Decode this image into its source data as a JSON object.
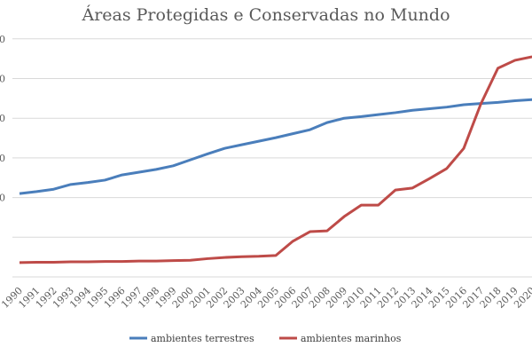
{
  "chart_data": {
    "type": "line",
    "title": "Áreas Protegidas e Conservadas no Mundo",
    "xlabel": "",
    "ylabel": "",
    "x": [
      1990,
      1991,
      1992,
      1993,
      1994,
      1995,
      1996,
      1997,
      1998,
      1999,
      2000,
      2001,
      2002,
      2003,
      2004,
      2005,
      2006,
      2007,
      2008,
      2009,
      2010,
      2011,
      2012,
      2013,
      2014,
      2015,
      2016,
      2017,
      2018,
      2019,
      2020
    ],
    "x_tick_labels": [
      "1990",
      "1991",
      "1992",
      "1993",
      "1994",
      "1995",
      "1996",
      "1997",
      "1998",
      "1999",
      "2000",
      "2001",
      "2002",
      "2003",
      "2004",
      "2005",
      "2006",
      "2007",
      "2008",
      "2009",
      "2010",
      "2011",
      "2012",
      "2013",
      "2014",
      "2015",
      "2016",
      "2017",
      "2018",
      "2019",
      "2020"
    ],
    "y_tick_labels_visible": [
      "0",
      "0",
      "0",
      "0",
      "0"
    ],
    "ylim": [
      0,
      6
    ],
    "grid": true,
    "legend": "bottom",
    "series": [
      {
        "name": "ambientes terrestres",
        "color": "#4a7ebb",
        "values": [
          2.1,
          2.15,
          2.21,
          2.33,
          2.38,
          2.44,
          2.57,
          2.64,
          2.71,
          2.8,
          2.95,
          3.1,
          3.24,
          3.33,
          3.42,
          3.51,
          3.61,
          3.71,
          3.89,
          4.0,
          4.04,
          4.09,
          4.14,
          4.2,
          4.24,
          4.28,
          4.34,
          4.37,
          4.4,
          4.44,
          4.47
        ]
      },
      {
        "name": "ambientes marinhos",
        "color": "#be4b48",
        "values": [
          0.36,
          0.37,
          0.37,
          0.38,
          0.38,
          0.39,
          0.39,
          0.4,
          0.4,
          0.41,
          0.42,
          0.46,
          0.49,
          0.51,
          0.52,
          0.54,
          0.9,
          1.14,
          1.16,
          1.52,
          1.81,
          1.81,
          2.19,
          2.24,
          2.48,
          2.73,
          3.24,
          4.36,
          5.26,
          5.46,
          5.55
        ]
      }
    ]
  }
}
